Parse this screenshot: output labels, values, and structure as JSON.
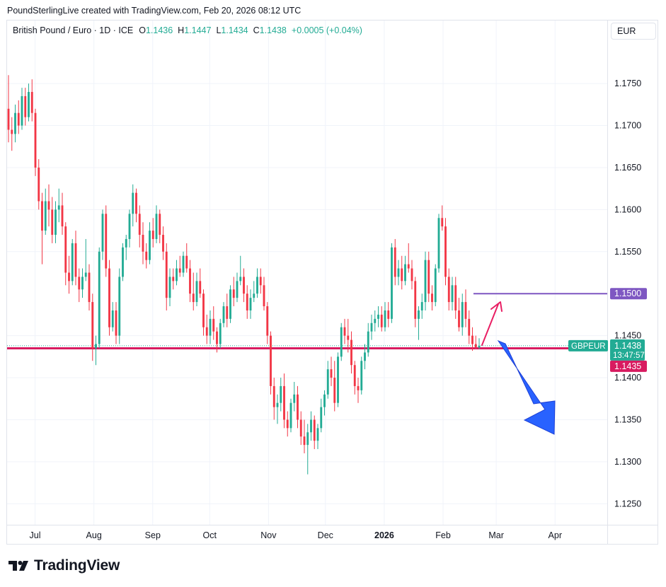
{
  "credit": "PoundSterlingLive created with TradingView.com, Feb 20, 2026 08:12 UTC",
  "legend": {
    "symbol": "British Pound / Euro · 1D · ICE",
    "o_label": "O",
    "o": "1.1436",
    "h_label": "H",
    "h": "1.1447",
    "l_label": "L",
    "l": "1.1434",
    "c_label": "C",
    "c": "1.1438",
    "change": "+0.0005 (+0.04%)"
  },
  "currency": "EUR",
  "logo_text": "TradingView",
  "colors": {
    "up": "#22ab94",
    "down": "#f23645",
    "level_line": "#7e57c2",
    "support_line": "#d81b60",
    "arrow_up": "#e91e63",
    "arrow_down": "#2962ff"
  },
  "chart_data": {
    "type": "candlestick",
    "series_name": "GBPEUR",
    "ylim": [
      1.1225,
      1.1825
    ],
    "y_ticks": [
      "1.1750",
      "1.1700",
      "1.1650",
      "1.1600",
      "1.1550",
      "1.1450",
      "1.1400",
      "1.1350",
      "1.1300",
      "1.1250"
    ],
    "x_ticks": [
      {
        "label": "Jul",
        "date": "2025-07-01",
        "bold": false
      },
      {
        "label": "Aug",
        "date": "2025-08-01",
        "bold": false
      },
      {
        "label": "Sep",
        "date": "2025-09-01",
        "bold": false
      },
      {
        "label": "Oct",
        "date": "2025-10-01",
        "bold": false
      },
      {
        "label": "Nov",
        "date": "2025-11-01",
        "bold": false
      },
      {
        "label": "Dec",
        "date": "2025-12-01",
        "bold": false
      },
      {
        "label": "2026",
        "date": "2026-01-01",
        "bold": true
      },
      {
        "label": "Feb",
        "date": "2026-02-01",
        "bold": false
      },
      {
        "label": "Mar",
        "date": "2026-03-01",
        "bold": false
      },
      {
        "label": "Apr",
        "date": "2026-04-01",
        "bold": false
      }
    ],
    "date_range": [
      "2025-06-17",
      "2026-02-20"
    ],
    "price_labels": {
      "last_price": "1.1438",
      "countdown": "13:47:57",
      "series_tag": "GBPEUR",
      "level": "1.1500",
      "support": "1.1435"
    },
    "level_line": {
      "value": 1.15,
      "from_date": "2026-02-17"
    },
    "support_line": {
      "value": 1.1435
    },
    "candles": [
      [
        1.172,
        1.176,
        1.168,
        1.1695
      ],
      [
        1.1695,
        1.171,
        1.167,
        1.169
      ],
      [
        1.169,
        1.1725,
        1.168,
        1.1715
      ],
      [
        1.1715,
        1.173,
        1.169,
        1.17
      ],
      [
        1.17,
        1.1745,
        1.1695,
        1.1735
      ],
      [
        1.1735,
        1.1745,
        1.17,
        1.171
      ],
      [
        1.171,
        1.175,
        1.1705,
        1.174
      ],
      [
        1.174,
        1.1755,
        1.1705,
        1.1715
      ],
      [
        1.1715,
        1.172,
        1.164,
        1.165
      ],
      [
        1.165,
        1.166,
        1.16,
        1.161
      ],
      [
        1.161,
        1.162,
        1.1535,
        1.1575
      ],
      [
        1.1575,
        1.1625,
        1.157,
        1.161
      ],
      [
        1.161,
        1.163,
        1.158,
        1.16
      ],
      [
        1.16,
        1.1615,
        1.156,
        1.157
      ],
      [
        1.157,
        1.161,
        1.156,
        1.16
      ],
      [
        1.16,
        1.1625,
        1.1585,
        1.1605
      ],
      [
        1.1605,
        1.162,
        1.157,
        1.158
      ],
      [
        1.158,
        1.1585,
        1.151,
        1.1525
      ],
      [
        1.1525,
        1.1545,
        1.15,
        1.1515
      ],
      [
        1.1515,
        1.1565,
        1.151,
        1.156
      ],
      [
        1.156,
        1.1575,
        1.151,
        1.152
      ],
      [
        1.152,
        1.153,
        1.149,
        1.1505
      ],
      [
        1.1505,
        1.153,
        1.1495,
        1.152
      ],
      [
        1.152,
        1.1565,
        1.1515,
        1.1525
      ],
      [
        1.1525,
        1.1535,
        1.148,
        1.149
      ],
      [
        1.149,
        1.15,
        1.142,
        1.1435
      ],
      [
        1.1435,
        1.145,
        1.1415,
        1.144
      ],
      [
        1.144,
        1.1555,
        1.1435,
        1.155
      ],
      [
        1.155,
        1.16,
        1.154,
        1.1595
      ],
      [
        1.1595,
        1.1605,
        1.152,
        1.153
      ],
      [
        1.153,
        1.154,
        1.145,
        1.146
      ],
      [
        1.146,
        1.149,
        1.1455,
        1.148
      ],
      [
        1.148,
        1.149,
        1.144,
        1.145
      ],
      [
        1.145,
        1.153,
        1.144,
        1.152
      ],
      [
        1.152,
        1.156,
        1.1515,
        1.1555
      ],
      [
        1.1555,
        1.157,
        1.154,
        1.1565
      ],
      [
        1.1565,
        1.16,
        1.1555,
        1.1595
      ],
      [
        1.1595,
        1.163,
        1.158,
        1.162
      ],
      [
        1.162,
        1.1625,
        1.1585,
        1.1595
      ],
      [
        1.1595,
        1.1605,
        1.1555,
        1.157
      ],
      [
        1.157,
        1.1585,
        1.1535,
        1.155
      ],
      [
        1.155,
        1.156,
        1.153,
        1.154
      ],
      [
        1.154,
        1.1585,
        1.1535,
        1.1575
      ],
      [
        1.1575,
        1.159,
        1.1555,
        1.1565
      ],
      [
        1.1565,
        1.1605,
        1.156,
        1.1595
      ],
      [
        1.1595,
        1.16,
        1.156,
        1.157
      ],
      [
        1.157,
        1.158,
        1.154,
        1.155
      ],
      [
        1.155,
        1.156,
        1.148,
        1.1495
      ],
      [
        1.1495,
        1.153,
        1.1485,
        1.152
      ],
      [
        1.152,
        1.153,
        1.1505,
        1.1515
      ],
      [
        1.1515,
        1.154,
        1.151,
        1.153
      ],
      [
        1.153,
        1.1545,
        1.152,
        1.1525
      ],
      [
        1.1525,
        1.155,
        1.152,
        1.1545
      ],
      [
        1.1545,
        1.156,
        1.1525,
        1.153
      ],
      [
        1.153,
        1.154,
        1.149,
        1.15
      ],
      [
        1.15,
        1.1525,
        1.148,
        1.149
      ],
      [
        1.149,
        1.1525,
        1.1485,
        1.1515
      ],
      [
        1.1515,
        1.153,
        1.1495,
        1.15
      ],
      [
        1.15,
        1.1505,
        1.145,
        1.146
      ],
      [
        1.146,
        1.1475,
        1.144,
        1.145
      ],
      [
        1.145,
        1.148,
        1.144,
        1.147
      ],
      [
        1.147,
        1.1485,
        1.1445,
        1.1455
      ],
      [
        1.1455,
        1.146,
        1.143,
        1.144
      ],
      [
        1.144,
        1.147,
        1.1435,
        1.1465
      ],
      [
        1.1465,
        1.149,
        1.146,
        1.1485
      ],
      [
        1.1485,
        1.15,
        1.146,
        1.147
      ],
      [
        1.147,
        1.151,
        1.1465,
        1.1505
      ],
      [
        1.1505,
        1.152,
        1.1485,
        1.1495
      ],
      [
        1.1495,
        1.1525,
        1.149,
        1.1515
      ],
      [
        1.1515,
        1.1545,
        1.151,
        1.152
      ],
      [
        1.152,
        1.153,
        1.149,
        1.15
      ],
      [
        1.15,
        1.151,
        1.147,
        1.148
      ],
      [
        1.148,
        1.1505,
        1.147,
        1.1495
      ],
      [
        1.1495,
        1.1515,
        1.149,
        1.15
      ],
      [
        1.15,
        1.153,
        1.1495,
        1.152
      ],
      [
        1.152,
        1.153,
        1.15,
        1.151
      ],
      [
        1.151,
        1.152,
        1.148,
        1.1485
      ],
      [
        1.1485,
        1.149,
        1.144,
        1.145
      ],
      [
        1.145,
        1.1455,
        1.138,
        1.139
      ],
      [
        1.139,
        1.14,
        1.135,
        1.1365
      ],
      [
        1.1365,
        1.138,
        1.1345,
        1.137
      ],
      [
        1.137,
        1.14,
        1.136,
        1.139
      ],
      [
        1.139,
        1.1405,
        1.134,
        1.135
      ],
      [
        1.135,
        1.136,
        1.133,
        1.134
      ],
      [
        1.134,
        1.1375,
        1.1335,
        1.137
      ],
      [
        1.137,
        1.1395,
        1.136,
        1.138
      ],
      [
        1.138,
        1.139,
        1.134,
        1.135
      ],
      [
        1.135,
        1.136,
        1.132,
        1.133
      ],
      [
        1.133,
        1.135,
        1.131,
        1.132
      ],
      [
        1.132,
        1.1345,
        1.1285,
        1.1335
      ],
      [
        1.1335,
        1.136,
        1.1325,
        1.135
      ],
      [
        1.135,
        1.1355,
        1.1315,
        1.1325
      ],
      [
        1.1325,
        1.1345,
        1.1315,
        1.134
      ],
      [
        1.134,
        1.1375,
        1.1335,
        1.1365
      ],
      [
        1.1365,
        1.1385,
        1.1355,
        1.138
      ],
      [
        1.138,
        1.142,
        1.1375,
        1.141
      ],
      [
        1.141,
        1.1425,
        1.139,
        1.14
      ],
      [
        1.14,
        1.142,
        1.136,
        1.137
      ],
      [
        1.137,
        1.143,
        1.1365,
        1.1425
      ],
      [
        1.1425,
        1.1465,
        1.142,
        1.146
      ],
      [
        1.146,
        1.147,
        1.144,
        1.145
      ],
      [
        1.145,
        1.147,
        1.143,
        1.1445
      ],
      [
        1.1445,
        1.1455,
        1.1405,
        1.1415
      ],
      [
        1.1415,
        1.142,
        1.138,
        1.139
      ],
      [
        1.139,
        1.14,
        1.137,
        1.1385
      ],
      [
        1.1385,
        1.1425,
        1.138,
        1.142
      ],
      [
        1.142,
        1.144,
        1.141,
        1.143
      ],
      [
        1.143,
        1.1465,
        1.1425,
        1.1455
      ],
      [
        1.1455,
        1.1475,
        1.1445,
        1.1465
      ],
      [
        1.1465,
        1.148,
        1.1455,
        1.147
      ],
      [
        1.147,
        1.1485,
        1.146,
        1.1475
      ],
      [
        1.1475,
        1.1485,
        1.1455,
        1.146
      ],
      [
        1.146,
        1.149,
        1.1455,
        1.148
      ],
      [
        1.148,
        1.149,
        1.146,
        1.147
      ],
      [
        1.147,
        1.156,
        1.1465,
        1.1555
      ],
      [
        1.1555,
        1.1565,
        1.151,
        1.152
      ],
      [
        1.152,
        1.154,
        1.151,
        1.153
      ],
      [
        1.153,
        1.1545,
        1.1505,
        1.1515
      ],
      [
        1.1515,
        1.1545,
        1.151,
        1.1535
      ],
      [
        1.1535,
        1.156,
        1.1525,
        1.153
      ],
      [
        1.153,
        1.154,
        1.1505,
        1.1515
      ],
      [
        1.1515,
        1.152,
        1.146,
        1.147
      ],
      [
        1.147,
        1.1485,
        1.1445,
        1.148
      ],
      [
        1.148,
        1.15,
        1.147,
        1.149
      ],
      [
        1.149,
        1.155,
        1.148,
        1.154
      ],
      [
        1.154,
        1.155,
        1.149,
        1.15
      ],
      [
        1.15,
        1.151,
        1.148,
        1.149
      ],
      [
        1.149,
        1.1535,
        1.1485,
        1.153
      ],
      [
        1.153,
        1.1595,
        1.1525,
        1.159
      ],
      [
        1.159,
        1.1605,
        1.1575,
        1.158
      ],
      [
        1.158,
        1.159,
        1.151,
        1.152
      ],
      [
        1.152,
        1.153,
        1.148,
        1.149
      ],
      [
        1.149,
        1.152,
        1.148,
        1.151
      ],
      [
        1.151,
        1.152,
        1.147,
        1.148
      ],
      [
        1.148,
        1.1495,
        1.1455,
        1.146
      ],
      [
        1.146,
        1.15,
        1.145,
        1.149
      ],
      [
        1.149,
        1.1505,
        1.146,
        1.147
      ],
      [
        1.147,
        1.148,
        1.144,
        1.145
      ],
      [
        1.145,
        1.146,
        1.1432,
        1.144
      ],
      [
        1.144,
        1.145,
        1.1434,
        1.1436
      ],
      [
        1.1436,
        1.1447,
        1.1434,
        1.1438
      ]
    ]
  }
}
